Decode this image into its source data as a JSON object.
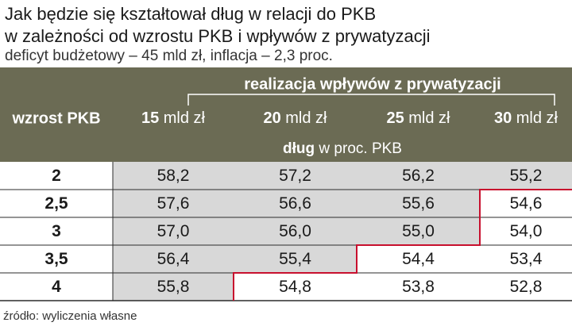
{
  "title_line_1": "Jak będzie się kształtował dług w relacji do PKB",
  "title_line_2": "w zależności od wzrostu PKB i wpływów z prywatyzacji",
  "subtitle": "deficyt budżetowy – 45 mld zł, inflacja – 2,3 proc.",
  "source": "źródło: wyliczenia własne",
  "colors": {
    "header_bg": "#6b6b54",
    "header_text": "#ffffff",
    "shaded_cell": "#d8d8d8",
    "white_cell": "#ffffff",
    "threshold_line": "#c8102e",
    "grid_line": "#2b2b2b"
  },
  "chart_data": {
    "type": "table",
    "row_header": "wzrost PKB",
    "column_group_header": "realizacja wpływów z prywatyzacji",
    "columns": [
      {
        "value": "15",
        "unit": "mld zł"
      },
      {
        "value": "20",
        "unit": "mld zł"
      },
      {
        "value": "25",
        "unit": "mld zł"
      },
      {
        "value": "30",
        "unit": "mld zł"
      }
    ],
    "value_caption": {
      "bold": "dług",
      "rest": "w proc. PKB"
    },
    "rows": [
      {
        "label": "2",
        "values": [
          "58,2",
          "57,2",
          "56,2",
          "55,2"
        ]
      },
      {
        "label": "2,5",
        "values": [
          "57,6",
          "56,6",
          "55,6",
          "54,6"
        ]
      },
      {
        "label": "3",
        "values": [
          "57,0",
          "56,0",
          "55,0",
          "54,0"
        ]
      },
      {
        "label": "3,5",
        "values": [
          "56,4",
          "55,4",
          "54,4",
          "53,4"
        ]
      },
      {
        "label": "4",
        "values": [
          "55,8",
          "54,8",
          "53,8",
          "52,8"
        ]
      }
    ],
    "shaded_columns_per_row": [
      4,
      3,
      3,
      2,
      1
    ]
  }
}
